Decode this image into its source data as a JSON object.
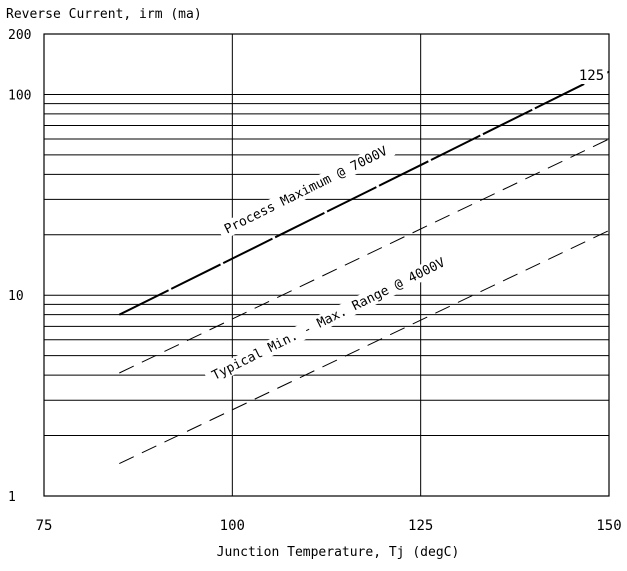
{
  "chart_data": {
    "type": "line",
    "ylabel": "Reverse Current, irm (ma)",
    "xlabel": "Junction Temperature, Tj (degC)",
    "xlim": [
      75,
      150
    ],
    "ylim": [
      1,
      200
    ],
    "yscale": "log",
    "x_ticks": [
      "75",
      "100",
      "125",
      "150"
    ],
    "x_tick_values": [
      75,
      100,
      125,
      150
    ],
    "y_ticks": [
      "1",
      "10",
      "100",
      "200"
    ],
    "y_tick_values": [
      1,
      10,
      100,
      200
    ],
    "vertical_grid": [
      100,
      125
    ],
    "horizontal_grid": [
      2,
      3,
      4,
      5,
      6,
      7,
      8,
      9,
      20,
      30,
      40,
      50,
      60,
      70,
      80,
      90
    ],
    "grid": true,
    "series": [
      {
        "name": "Process Maximum @ 7000V",
        "x": [
          85,
          150
        ],
        "y": [
          8,
          130
        ],
        "style": "solid"
      },
      {
        "name": "",
        "x": [
          85,
          150
        ],
        "y": [
          4.1,
          60
        ],
        "style": "dashed"
      },
      {
        "name": "",
        "x": [
          85,
          150
        ],
        "y": [
          1.45,
          21
        ],
        "style": "dashed"
      }
    ],
    "annotations": [
      {
        "text": "Process Maximum @ 7000V",
        "x": 110,
        "y": 32
      },
      {
        "text": "Typical Min. - Max. Range @ 4000V",
        "x": 113,
        "y": 7.3
      },
      {
        "text": "125",
        "x": 146,
        "y": 118
      }
    ]
  }
}
